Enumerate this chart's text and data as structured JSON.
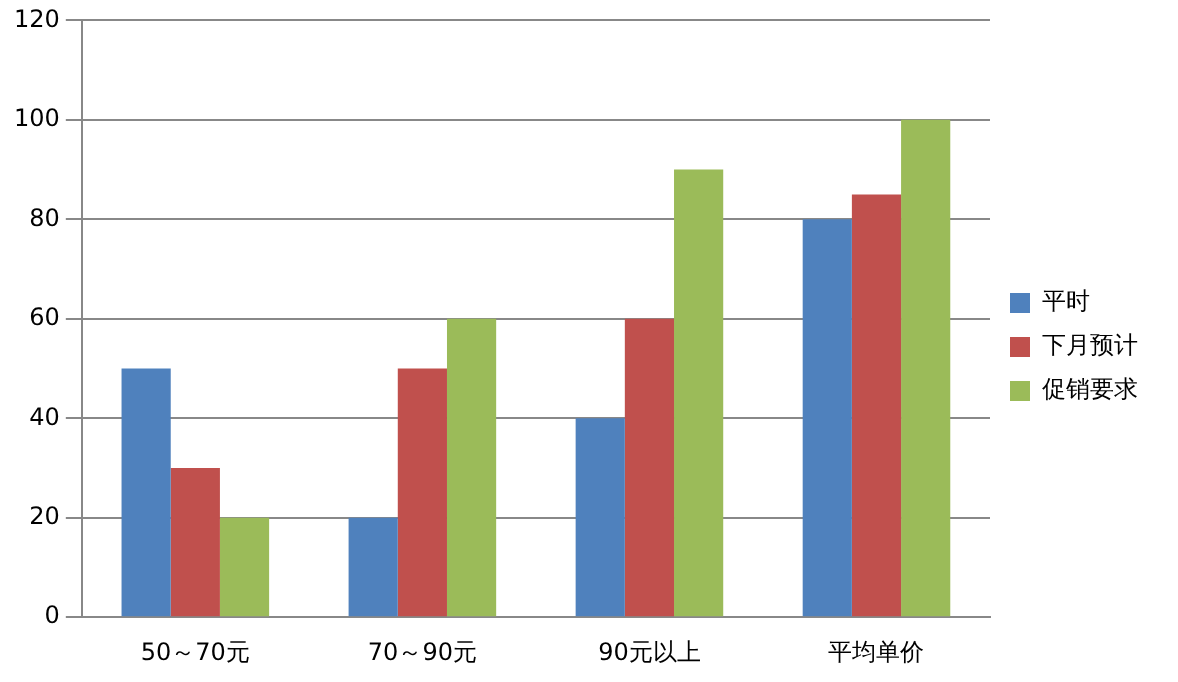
{
  "chart_data": {
    "type": "bar",
    "categories": [
      "50～70元",
      "70～90元",
      "90元以上",
      "平均单价"
    ],
    "series": [
      {
        "name": "平时",
        "color": "#4f81bd",
        "values": [
          50,
          20,
          40,
          80
        ]
      },
      {
        "name": "下月预计",
        "color": "#c0504d",
        "values": [
          30,
          50,
          60,
          85
        ]
      },
      {
        "name": "促销要求",
        "color": "#9bbb59",
        "values": [
          20,
          60,
          90,
          100
        ]
      }
    ],
    "ylim": [
      0,
      120
    ],
    "yticks": [
      0,
      20,
      40,
      60,
      80,
      100,
      120
    ],
    "grid": "y",
    "legend": "right"
  }
}
